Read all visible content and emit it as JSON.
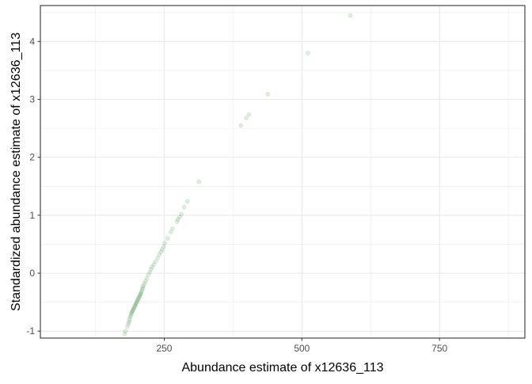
{
  "chart_data": {
    "type": "scatter",
    "title": "",
    "xlabel": "Abundance estimate of x12636_113",
    "ylabel": "Standardized abundance estimate of x12636_113",
    "xlim": [
      25,
      905
    ],
    "ylim": [
      -1.12,
      4.62
    ],
    "x_ticks": [
      250,
      500,
      750
    ],
    "y_ticks": [
      -1,
      0,
      1,
      2,
      3,
      4
    ],
    "x_tick_labels": [
      "250",
      "500",
      "750"
    ],
    "y_tick_labels": [
      "-1",
      "0",
      "1",
      "2",
      "3",
      "4"
    ],
    "grid": true,
    "legend": "none",
    "point_color": "#2e7d32",
    "point_opacity": 0.15,
    "x": [
      588,
      511,
      438,
      404,
      399,
      389,
      313,
      292,
      286,
      281,
      278,
      275,
      273,
      265,
      262,
      256,
      251,
      249,
      246,
      244,
      241,
      238,
      234,
      231,
      228,
      226,
      224,
      221,
      218,
      216,
      214,
      212,
      211,
      210,
      209,
      208,
      207,
      206,
      205,
      204,
      203,
      202,
      201,
      200,
      199,
      198,
      197,
      196,
      195,
      194,
      193,
      192,
      191,
      190,
      189,
      188,
      187,
      186,
      185,
      183,
      180,
      178
    ],
    "y": [
      4.45,
      3.8,
      3.09,
      2.74,
      2.68,
      2.55,
      1.58,
      1.24,
      1.14,
      1.02,
      0.97,
      0.93,
      0.89,
      0.77,
      0.71,
      0.6,
      0.52,
      0.46,
      0.41,
      0.37,
      0.32,
      0.26,
      0.2,
      0.15,
      0.11,
      0.07,
      0.02,
      -0.03,
      -0.09,
      -0.14,
      -0.18,
      -0.22,
      -0.25,
      -0.28,
      -0.31,
      -0.34,
      -0.36,
      -0.38,
      -0.4,
      -0.42,
      -0.44,
      -0.46,
      -0.48,
      -0.5,
      -0.52,
      -0.54,
      -0.56,
      -0.58,
      -0.6,
      -0.62,
      -0.64,
      -0.66,
      -0.68,
      -0.7,
      -0.73,
      -0.76,
      -0.8,
      -0.84,
      -0.87,
      -0.92,
      -1.0,
      -1.05
    ]
  }
}
